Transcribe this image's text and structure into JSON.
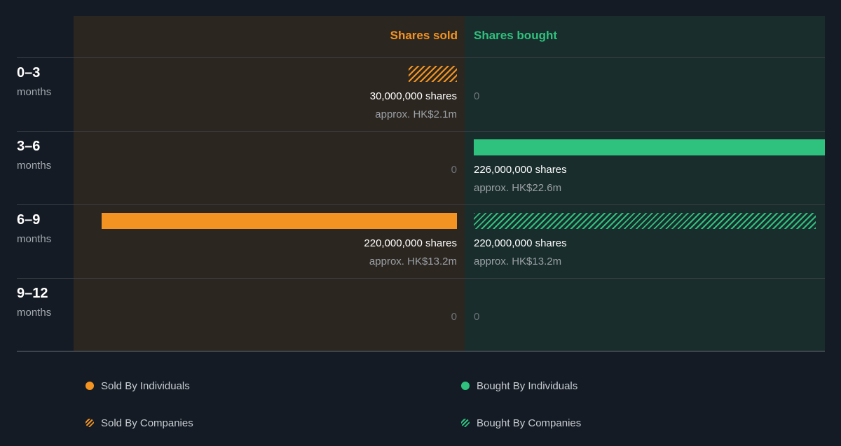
{
  "chart_data": {
    "type": "bar",
    "orientation": "horizontal-diverging",
    "headers": {
      "sold": "Shares sold",
      "bought": "Shares bought"
    },
    "unit_label": "months",
    "categories": [
      "0–3",
      "3–6",
      "6–9",
      "9–12"
    ],
    "max_shares": 226000000,
    "series": [
      {
        "name": "Sold By Individuals",
        "side": "sold",
        "style": "solid",
        "values": [
          0,
          0,
          220000000,
          0
        ]
      },
      {
        "name": "Sold By Companies",
        "side": "sold",
        "style": "hatched",
        "values": [
          30000000,
          0,
          0,
          0
        ]
      },
      {
        "name": "Bought By Individuals",
        "side": "bought",
        "style": "solid",
        "values": [
          0,
          226000000,
          0,
          0
        ]
      },
      {
        "name": "Bought By Companies",
        "side": "bought",
        "style": "hatched",
        "values": [
          0,
          0,
          220000000,
          0
        ]
      }
    ],
    "rows": [
      {
        "sold": {
          "shares": "30,000,000 shares",
          "approx": "approx. HK$2.1m"
        },
        "bought": {
          "zero": "0"
        }
      },
      {
        "sold": {
          "zero": "0"
        },
        "bought": {
          "shares": "226,000,000 shares",
          "approx": "approx. HK$22.6m"
        }
      },
      {
        "sold": {
          "shares": "220,000,000 shares",
          "approx": "approx. HK$13.2m"
        },
        "bought": {
          "shares": "220,000,000 shares",
          "approx": "approx. HK$13.2m"
        }
      },
      {
        "sold": {
          "zero": "0"
        },
        "bought": {
          "zero": "0"
        }
      }
    ],
    "legend": {
      "sold_individuals": "Sold By Individuals",
      "sold_companies": "Sold By Companies",
      "bought_individuals": "Bought By Individuals",
      "bought_companies": "Bought By Companies"
    },
    "colors": {
      "sold": "#f39422",
      "bought": "#2ec27e"
    }
  }
}
